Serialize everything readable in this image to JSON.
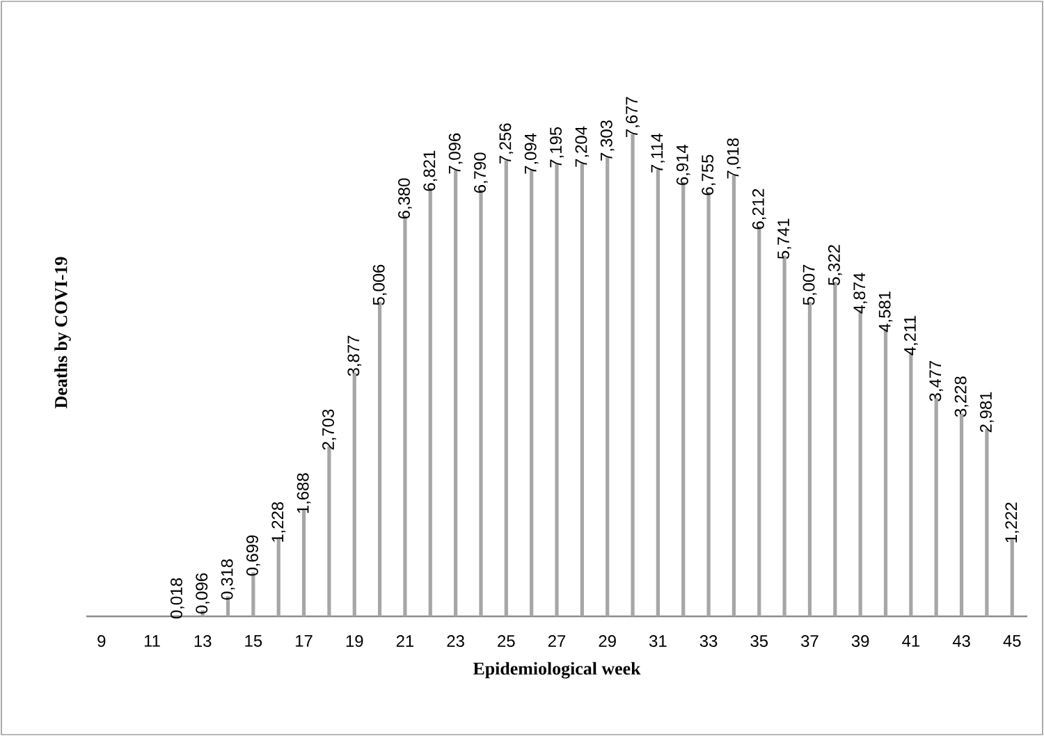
{
  "chart_data": {
    "type": "bar",
    "xlabel": "Epidemiological week",
    "ylabel": "Deaths by COVI-19",
    "categories": [
      "9",
      null,
      "11",
      null,
      "13",
      null,
      "15",
      null,
      "17",
      null,
      "19",
      null,
      "21",
      null,
      "23",
      null,
      "25",
      null,
      "27",
      null,
      "29",
      null,
      "31",
      null,
      "33",
      null,
      "35",
      null,
      "37",
      null,
      "39",
      null,
      "41",
      null,
      "43",
      null,
      "45"
    ],
    "values": [
      0,
      0,
      0,
      0.018,
      0.096,
      0.318,
      0.699,
      1.228,
      1.688,
      2.703,
      3.877,
      5.006,
      6.38,
      6.821,
      7.096,
      6.79,
      7.256,
      7.094,
      7.195,
      7.204,
      7.303,
      7.677,
      7.114,
      6.914,
      6.755,
      7.018,
      6.212,
      5.741,
      5.007,
      5.322,
      4.874,
      4.581,
      4.211,
      3.477,
      3.228,
      2.981,
      1.222
    ],
    "value_labels": [
      null,
      null,
      null,
      "0,018",
      "0,096",
      "0,318",
      "0,699",
      "1,228",
      "1,688",
      "2,703",
      "3,877",
      "5,006",
      "6,380",
      "6,821",
      "7,096",
      "6,790",
      "7,256",
      "7,094",
      "7,195",
      "7,204",
      "7,303",
      "7,677",
      "7,114",
      "6,914",
      "6,755",
      "7,018",
      "6,212",
      "5,741",
      "5,007",
      "5,322",
      "4,874",
      "4,581",
      "4,211",
      "3,477",
      "3,228",
      "2,981",
      "1,222"
    ],
    "color": "#a6a6a6"
  }
}
